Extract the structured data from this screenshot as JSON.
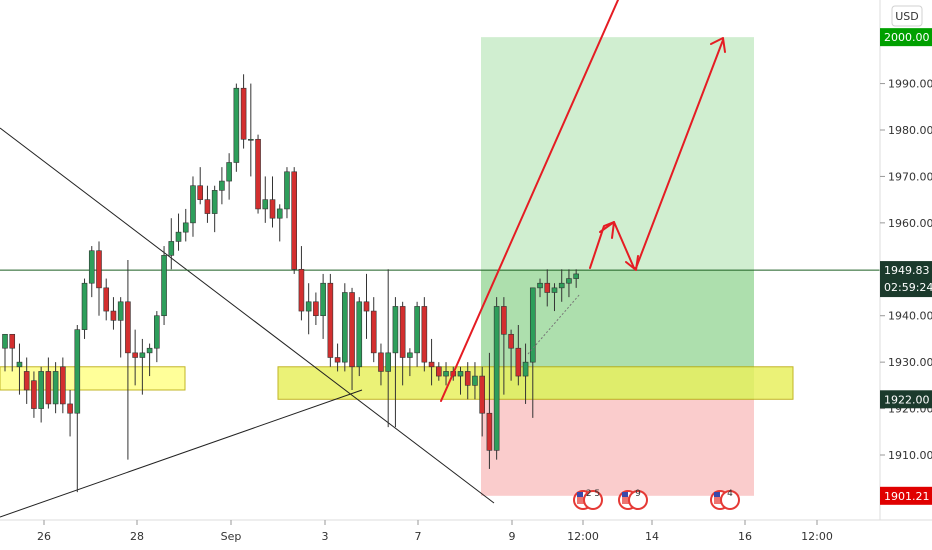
{
  "currency_button": "USD",
  "colors": {
    "up": "#26a69a",
    "down": "#ef5350",
    "up_body": "#2e9e5b",
    "down_body": "#d32f2f",
    "profit_zone": "#c8ebc8",
    "loss_zone": "#f9c6c6",
    "support_zone": "#ffff88",
    "arrow": "#e51c23",
    "last_price_line": "#1b5e20",
    "target_badge": "#00a000",
    "stop_badge": "#e00000",
    "price_badge": "#1b3a2c"
  },
  "chart_data": {
    "type": "candlestick",
    "symbol_quote": "USD",
    "ylim": [
      1896,
      2008
    ],
    "y_ticks": [
      1910,
      1920,
      1930,
      1940,
      1950,
      1960,
      1970,
      1980,
      1990
    ],
    "x_ticks": [
      "26",
      "28",
      "Sep",
      "3",
      "7",
      "9",
      "12:00",
      "14",
      "16",
      "12:00"
    ],
    "last_price": {
      "value": 1949.83,
      "label": "1949.83",
      "countdown": "02:59:24"
    },
    "take_profit": {
      "value": 2000.0,
      "label": "2000.00"
    },
    "entry": {
      "value": 1922.0,
      "label": "1922.00"
    },
    "stop_loss": {
      "value": 1901.21,
      "label": "1901.21"
    },
    "support_zones": [
      {
        "low": 1924,
        "high": 1929
      },
      {
        "low": 1922,
        "high": 1929
      }
    ],
    "events": [
      {
        "label": "2 5"
      },
      {
        "label": "9"
      },
      {
        "label": "4"
      }
    ],
    "candles": [
      [
        1933,
        1935,
        1928,
        1936
      ],
      [
        1936,
        1936,
        1928,
        1933
      ],
      [
        1929,
        1934,
        1923,
        1930
      ],
      [
        1928,
        1931,
        1921,
        1924
      ],
      [
        1926,
        1928,
        1918,
        1920
      ],
      [
        1920,
        1929,
        1917,
        1928
      ],
      [
        1928,
        1931,
        1920,
        1921
      ],
      [
        1921,
        1930,
        1919,
        1928
      ],
      [
        1929,
        1931,
        1919,
        1921
      ],
      [
        1921,
        1924,
        1914,
        1919
      ],
      [
        1919,
        1938,
        1902,
        1937
      ],
      [
        1937,
        1948,
        1935,
        1947
      ],
      [
        1947,
        1955,
        1944,
        1954
      ],
      [
        1954,
        1956,
        1940,
        1946
      ],
      [
        1946,
        1948,
        1939,
        1941
      ],
      [
        1941,
        1944,
        1937,
        1939
      ],
      [
        1939,
        1944,
        1931,
        1943
      ],
      [
        1943,
        1952,
        1909,
        1932
      ],
      [
        1932,
        1937,
        1925,
        1931
      ],
      [
        1931,
        1935,
        1923,
        1932
      ],
      [
        1932,
        1934,
        1927,
        1933
      ],
      [
        1933,
        1941,
        1930,
        1940
      ],
      [
        1940,
        1955,
        1938,
        1953
      ],
      [
        1953,
        1961,
        1950,
        1956
      ],
      [
        1956,
        1962,
        1954,
        1958
      ],
      [
        1958,
        1963,
        1956,
        1960
      ],
      [
        1960,
        1970,
        1957,
        1968
      ],
      [
        1968,
        1972,
        1964,
        1965
      ],
      [
        1965,
        1968,
        1960,
        1962
      ],
      [
        1962,
        1968,
        1958,
        1967
      ],
      [
        1967,
        1972,
        1964,
        1969
      ],
      [
        1969,
        1975,
        1965,
        1973
      ],
      [
        1973,
        1990,
        1971,
        1989
      ],
      [
        1989,
        1992,
        1976,
        1978
      ],
      [
        1978,
        1990,
        1970,
        1978
      ],
      [
        1978,
        1979,
        1962,
        1963
      ],
      [
        1963,
        1970,
        1960,
        1965
      ],
      [
        1965,
        1970,
        1959,
        1961
      ],
      [
        1961,
        1964,
        1956,
        1963
      ],
      [
        1963,
        1972,
        1961,
        1971
      ],
      [
        1971,
        1972,
        1949,
        1950
      ],
      [
        1950,
        1955,
        1939,
        1941
      ],
      [
        1941,
        1947,
        1936,
        1943
      ],
      [
        1943,
        1945,
        1938,
        1940
      ],
      [
        1940,
        1949,
        1935,
        1947
      ],
      [
        1947,
        1949,
        1929,
        1931
      ],
      [
        1931,
        1934,
        1928,
        1930
      ],
      [
        1930,
        1947,
        1928,
        1945
      ],
      [
        1945,
        1946,
        1924,
        1929
      ],
      [
        1929,
        1944,
        1927,
        1943
      ],
      [
        1943,
        1949,
        1935,
        1941
      ],
      [
        1941,
        1944,
        1930,
        1932
      ],
      [
        1932,
        1934,
        1925,
        1928
      ],
      [
        1928,
        1950,
        1916,
        1932
      ],
      [
        1932,
        1944,
        1916,
        1942
      ],
      [
        1942,
        1943,
        1925,
        1931
      ],
      [
        1931,
        1933,
        1927,
        1932
      ],
      [
        1932,
        1943,
        1929,
        1942
      ],
      [
        1942,
        1944,
        1928,
        1930
      ],
      [
        1930,
        1935,
        1925,
        1929
      ],
      [
        1929,
        1930,
        1926,
        1927
      ],
      [
        1927,
        1930,
        1925,
        1928
      ],
      [
        1928,
        1929,
        1926,
        1927
      ],
      [
        1927,
        1929,
        1923,
        1928
      ],
      [
        1928,
        1930,
        1922,
        1925
      ],
      [
        1925,
        1930,
        1922,
        1927
      ],
      [
        1927,
        1929,
        1914,
        1919
      ],
      [
        1919,
        1932,
        1907,
        1911
      ],
      [
        1911,
        1944,
        1909,
        1942
      ],
      [
        1942,
        1944,
        1923,
        1936
      ],
      [
        1936,
        1937,
        1926,
        1933
      ],
      [
        1933,
        1938,
        1925,
        1927
      ],
      [
        1927,
        1934,
        1921,
        1930
      ],
      [
        1930,
        1946,
        1918,
        1946
      ],
      [
        1946,
        1948,
        1944,
        1947
      ],
      [
        1947,
        1950,
        1942,
        1945
      ],
      [
        1945,
        1947,
        1941,
        1946
      ],
      [
        1946,
        1950,
        1943,
        1947
      ],
      [
        1947,
        1950,
        1944,
        1948
      ],
      [
        1948,
        1950,
        1946,
        1949
      ]
    ]
  }
}
